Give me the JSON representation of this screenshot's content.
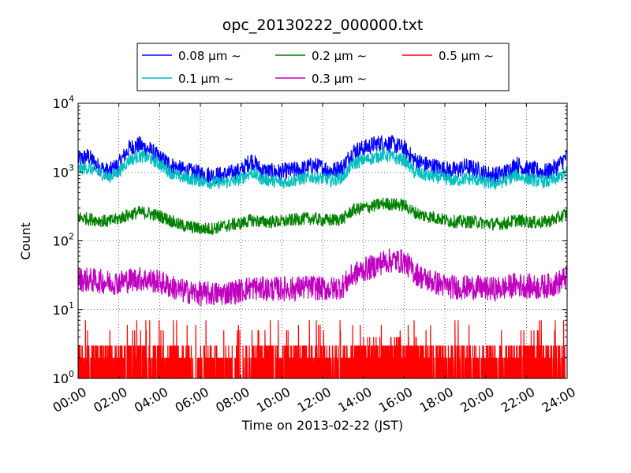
{
  "chart_data": {
    "type": "line",
    "title": "opc_20130222_000000.txt",
    "xlabel": "Time on 2013-02-22 (JST)",
    "ylabel": "Count",
    "x_ticks": [
      "00:00",
      "02:00",
      "04:00",
      "06:00",
      "08:00",
      "10:00",
      "12:00",
      "14:00",
      "16:00",
      "18:00",
      "20:00",
      "22:00",
      "24:00"
    ],
    "y_scale": "log",
    "y_ticks": [
      {
        "base": "10",
        "exp": "0"
      },
      {
        "base": "10",
        "exp": "1"
      },
      {
        "base": "10",
        "exp": "2"
      },
      {
        "base": "10",
        "exp": "3"
      },
      {
        "base": "10",
        "exp": "4"
      }
    ],
    "xlim_hours": [
      0,
      24
    ],
    "ylim": [
      1,
      10000
    ],
    "grid": true,
    "legend_position": "top-center",
    "series": [
      {
        "name": "0.08 μm ∼",
        "color": "#0000ff",
        "x": [
          0,
          0.5,
          1,
          1.5,
          2,
          2.5,
          3,
          3.5,
          4,
          4.5,
          5,
          5.5,
          6,
          6.5,
          7,
          7.5,
          8,
          8.5,
          9,
          9.5,
          10,
          10.5,
          11,
          11.5,
          12,
          12.5,
          13,
          13.5,
          14,
          14.5,
          15,
          15.5,
          16,
          16.5,
          17,
          17.5,
          18,
          18.5,
          19,
          19.5,
          20,
          20.5,
          21,
          21.5,
          22,
          22.5,
          23,
          23.5,
          24
        ],
        "values": [
          1500,
          1700,
          1200,
          1000,
          1300,
          2200,
          2500,
          2100,
          1600,
          1300,
          1100,
          1000,
          950,
          900,
          900,
          950,
          1050,
          1500,
          1050,
          1000,
          1000,
          1050,
          1100,
          1250,
          1150,
          1050,
          1200,
          2000,
          2200,
          2500,
          2700,
          2500,
          2200,
          1500,
          1300,
          1200,
          1100,
          1050,
          1200,
          1100,
          950,
          900,
          1000,
          1300,
          1100,
          1050,
          1000,
          1200,
          1700
        ]
      },
      {
        "name": "0.1 μm ∼",
        "color": "#00bfbf",
        "x": [
          0,
          0.5,
          1,
          1.5,
          2,
          2.5,
          3,
          3.5,
          4,
          4.5,
          5,
          5.5,
          6,
          6.5,
          7,
          7.5,
          8,
          8.5,
          9,
          9.5,
          10,
          10.5,
          11,
          11.5,
          12,
          12.5,
          13,
          13.5,
          14,
          14.5,
          15,
          15.5,
          16,
          16.5,
          17,
          17.5,
          18,
          18.5,
          19,
          19.5,
          20,
          20.5,
          21,
          21.5,
          22,
          22.5,
          23,
          23.5,
          24
        ],
        "values": [
          1100,
          1150,
          1000,
          850,
          1000,
          1500,
          1700,
          1600,
          1300,
          1000,
          850,
          800,
          750,
          700,
          700,
          720,
          800,
          1000,
          800,
          750,
          700,
          750,
          800,
          850,
          800,
          750,
          850,
          1300,
          1500,
          1600,
          1800,
          1600,
          1500,
          1000,
          900,
          850,
          800,
          750,
          800,
          780,
          700,
          680,
          750,
          900,
          800,
          750,
          720,
          800,
          1000
        ]
      },
      {
        "name": "0.2 μm ∼",
        "color": "#008000",
        "x": [
          0,
          0.5,
          1,
          1.5,
          2,
          2.5,
          3,
          3.5,
          4,
          4.5,
          5,
          5.5,
          6,
          6.5,
          7,
          7.5,
          8,
          8.5,
          9,
          9.5,
          10,
          10.5,
          11,
          11.5,
          12,
          12.5,
          13,
          13.5,
          14,
          14.5,
          15,
          15.5,
          16,
          16.5,
          17,
          17.5,
          18,
          18.5,
          19,
          19.5,
          20,
          20.5,
          21,
          21.5,
          22,
          22.5,
          23,
          23.5,
          24
        ],
        "values": [
          220,
          210,
          200,
          190,
          210,
          240,
          260,
          250,
          230,
          200,
          170,
          160,
          150,
          150,
          160,
          170,
          180,
          200,
          190,
          190,
          190,
          200,
          210,
          210,
          200,
          200,
          210,
          280,
          300,
          320,
          350,
          340,
          330,
          260,
          230,
          220,
          200,
          190,
          190,
          190,
          180,
          175,
          180,
          200,
          190,
          185,
          190,
          210,
          250
        ]
      },
      {
        "name": "0.3 μm ∼",
        "color": "#bf00bf",
        "x": [
          0,
          0.5,
          1,
          1.5,
          2,
          2.5,
          3,
          3.5,
          4,
          4.5,
          5,
          5.5,
          6,
          6.5,
          7,
          7.5,
          8,
          8.5,
          9,
          9.5,
          10,
          10.5,
          11,
          11.5,
          12,
          12.5,
          13,
          13.5,
          14,
          14.5,
          15,
          15.5,
          16,
          16.5,
          17,
          17.5,
          18,
          18.5,
          19,
          19.5,
          20,
          20.5,
          21,
          21.5,
          22,
          22.5,
          23,
          23.5,
          24
        ],
        "values": [
          28,
          27,
          26,
          25,
          25,
          27,
          28,
          27,
          25,
          22,
          19,
          18,
          17,
          17,
          17,
          18,
          19,
          21,
          20,
          20,
          20,
          20,
          21,
          21,
          20,
          20,
          22,
          32,
          38,
          42,
          50,
          52,
          50,
          35,
          28,
          25,
          22,
          21,
          21,
          21,
          20,
          20,
          21,
          23,
          22,
          21,
          22,
          24,
          30
        ]
      },
      {
        "name": "0.5 μm ∼",
        "color": "#ff0000",
        "x": [
          0,
          1,
          2,
          3,
          4,
          5,
          6,
          7,
          8,
          9,
          10,
          11,
          12,
          13,
          14,
          15,
          16,
          17,
          18,
          19,
          20,
          21,
          22,
          23,
          24
        ],
        "values": [
          2,
          2,
          2,
          2,
          2,
          2,
          1.5,
          1.5,
          1.5,
          2,
          2,
          2,
          2,
          2,
          2.5,
          2.5,
          2.5,
          2,
          2,
          2,
          2,
          2,
          2,
          2,
          2
        ]
      }
    ]
  }
}
